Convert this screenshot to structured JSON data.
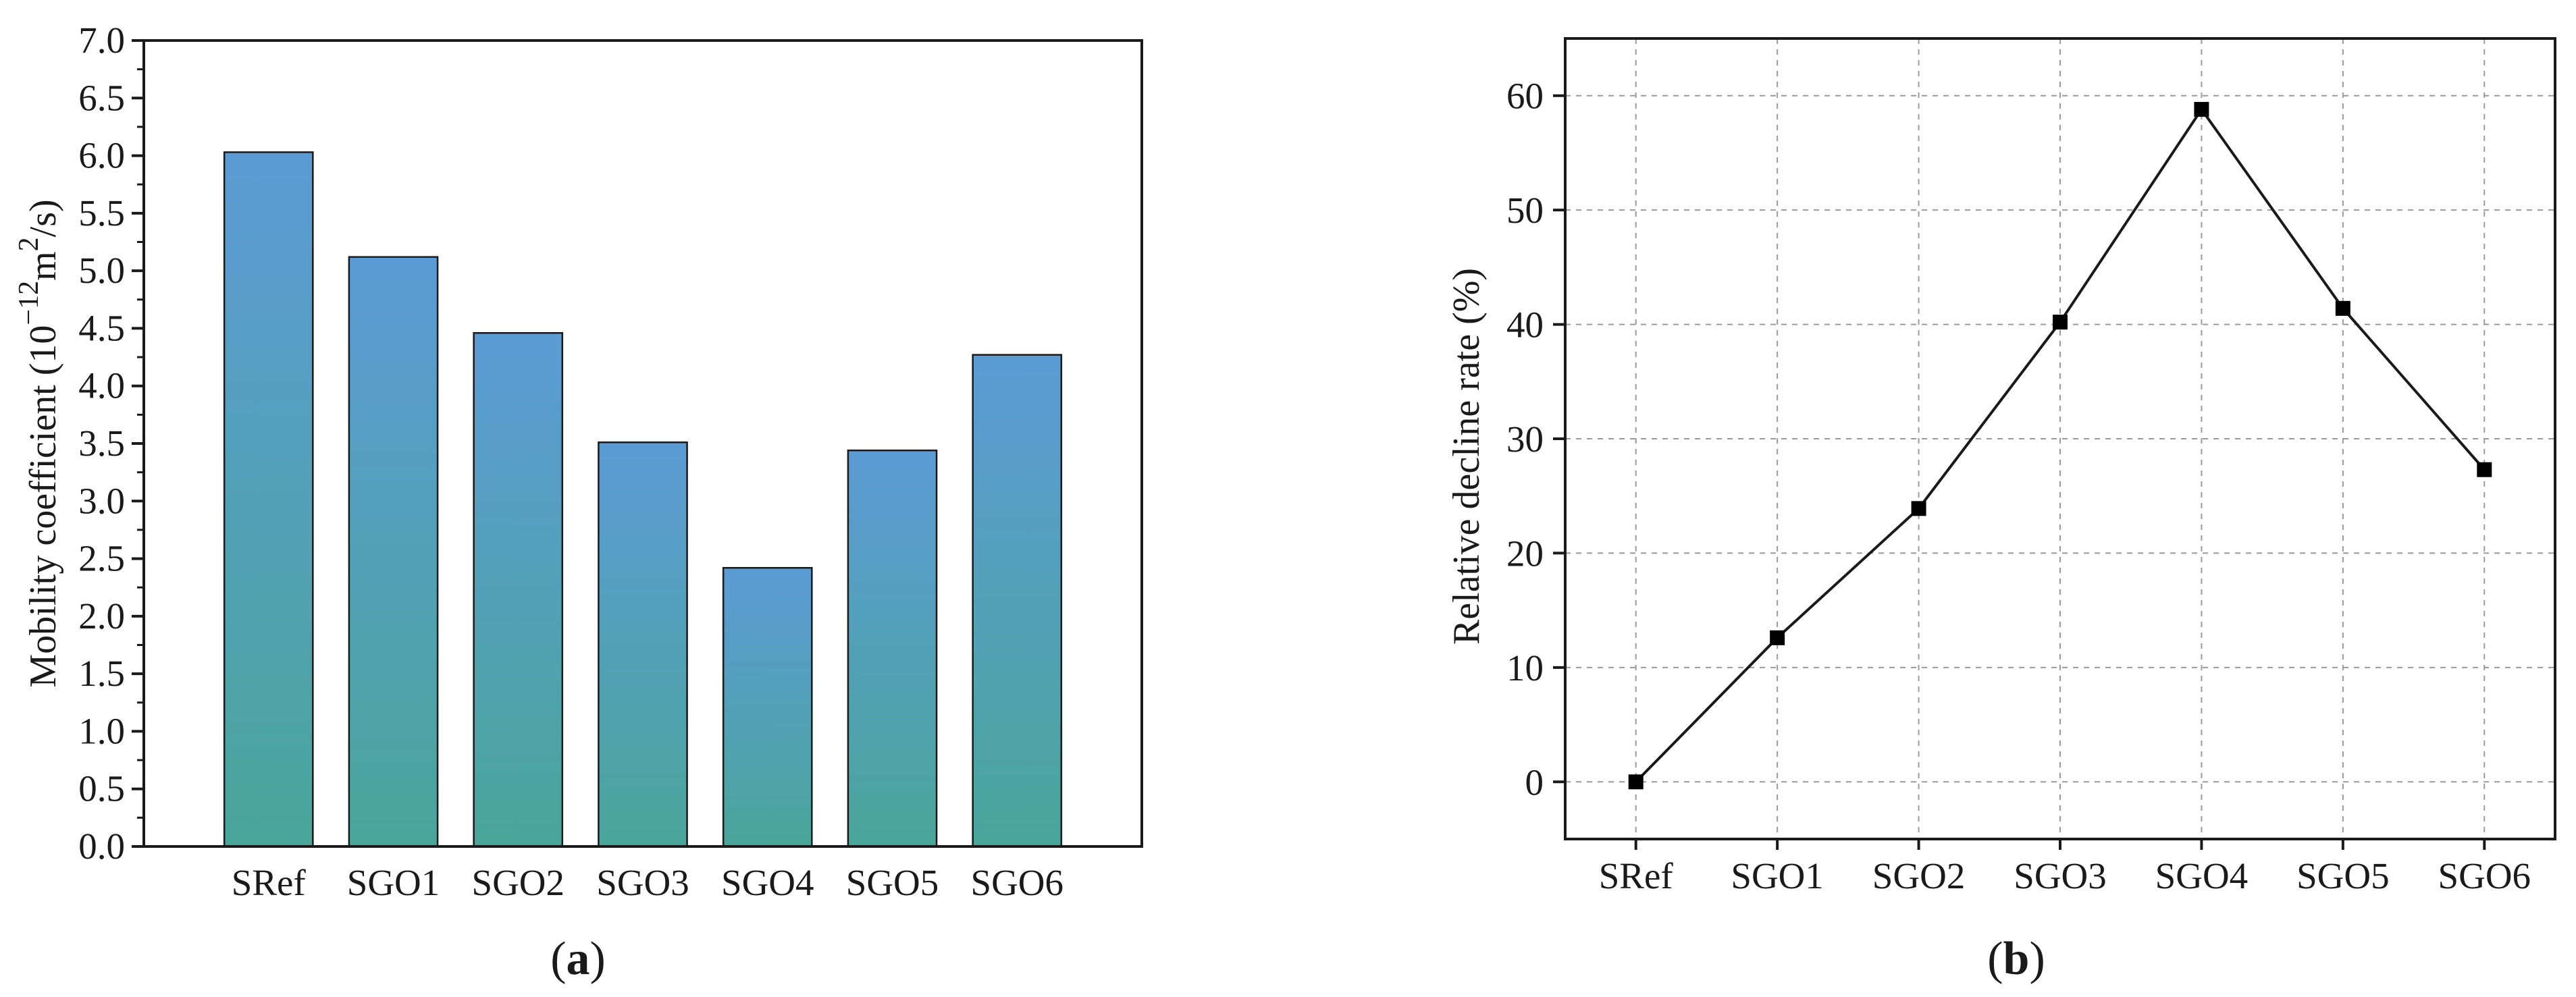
{
  "chart_data": [
    {
      "type": "bar",
      "panel_label": "a",
      "categories": [
        "SRef",
        "SGO1",
        "SGO2",
        "SGO3",
        "SGO4",
        "SGO5",
        "SGO6"
      ],
      "values": [
        6.03,
        5.12,
        4.46,
        3.51,
        2.42,
        3.44,
        4.27
      ],
      "ylabel_prefix": "Mobility coefficient (10",
      "ylabel_exp": "−12",
      "ylabel_mid": "m",
      "ylabel_exp2": "2",
      "ylabel_suffix": "/s)",
      "xlabel": "",
      "ylim": [
        0,
        7.0
      ],
      "yticks": [
        "0.0",
        "0.5",
        "1.0",
        "1.5",
        "2.0",
        "2.5",
        "3.0",
        "3.5",
        "4.0",
        "4.5",
        "5.0",
        "5.5",
        "6.0",
        "6.5",
        "7.0"
      ],
      "grid": false,
      "gradient_top": "#5b9bd5",
      "gradient_bottom": "#4aa59a"
    },
    {
      "type": "line",
      "panel_label": "b",
      "categories": [
        "SRef",
        "SGO1",
        "SGO2",
        "SGO3",
        "SGO4",
        "SGO5",
        "SGO6"
      ],
      "values": [
        0,
        12.6,
        23.9,
        40.2,
        58.8,
        41.4,
        27.3
      ],
      "ylabel": "Relative decline rate (%)",
      "xlabel": "",
      "ylim": [
        -5,
        65
      ],
      "yticks": [
        "0",
        "10",
        "20",
        "30",
        "40",
        "50",
        "60"
      ],
      "grid": true,
      "marker": "square",
      "line_color": "#1a1a1a"
    }
  ]
}
